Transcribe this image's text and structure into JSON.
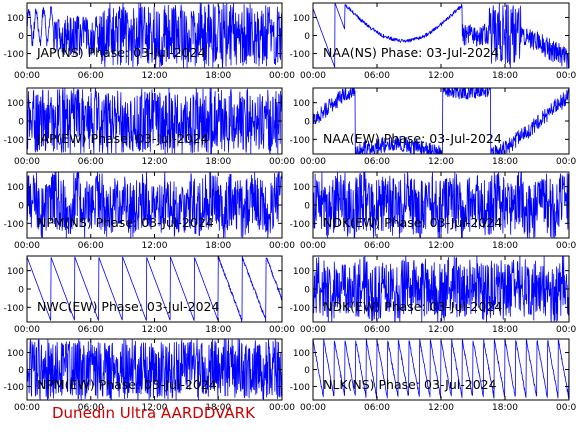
{
  "footer": "Dunedin Ultra AARDDVARK",
  "colors": {
    "trace": "#0000ff",
    "axes": "#000000",
    "footer": "#cc0000",
    "background": "#ffffff"
  },
  "chart_data": [
    {
      "type": "line",
      "label": "JAP(NS) Phase: 03-Jul-2024",
      "pattern": "dense_late",
      "xlim": [
        0,
        24
      ],
      "ylim": [
        -180,
        180
      ],
      "xticks": [
        "00:00",
        "06:00",
        "12:00",
        "18:00",
        "00:00"
      ],
      "yticks": [
        "100",
        "0",
        "-100"
      ]
    },
    {
      "type": "line",
      "label": "NAA(NS) Phase: 03-Jul-2024",
      "pattern": "arc",
      "xlim": [
        0,
        24
      ],
      "ylim": [
        -180,
        180
      ],
      "xticks": [
        "00:00",
        "06:00",
        "12:00",
        "18:00",
        "00:00"
      ],
      "yticks": [
        "100",
        "0",
        "-100"
      ]
    },
    {
      "type": "line",
      "label": "JAP(EW) Phase: 03-Jul-2024",
      "pattern": "dense",
      "xlim": [
        0,
        24
      ],
      "ylim": [
        -180,
        180
      ],
      "xticks": [
        "00:00",
        "06:00",
        "12:00",
        "18:00",
        "00:00"
      ],
      "yticks": [
        "100",
        "0",
        "-100"
      ]
    },
    {
      "type": "line",
      "label": "NAA(EW) Phase: 03-Jul-2024",
      "pattern": "noisy_wave",
      "xlim": [
        0,
        24
      ],
      "ylim": [
        -180,
        180
      ],
      "xticks": [
        "00:00",
        "06:00",
        "12:00",
        "18:00",
        "00:00"
      ],
      "yticks": [
        "100",
        "0",
        "-100"
      ]
    },
    {
      "type": "line",
      "label": "NPM(NS) Phase: 03-Jul-2024",
      "pattern": "noise",
      "xlim": [
        0,
        24
      ],
      "ylim": [
        -180,
        180
      ],
      "xticks": [
        "00:00",
        "06:00",
        "12:00",
        "18:00",
        "00:00"
      ],
      "yticks": [
        "100",
        "0",
        "-100"
      ]
    },
    {
      "type": "line",
      "label": "NDK(EW) Phase: 03-Jul-2024",
      "pattern": "noise",
      "xlim": [
        0,
        24
      ],
      "ylim": [
        -180,
        180
      ],
      "xticks": [
        "00:00",
        "06:00",
        "12:00",
        "18:00",
        "00:00"
      ],
      "yticks": [
        "100",
        "0",
        "-100"
      ]
    },
    {
      "type": "line",
      "label": "NWC(EW) Phase: 03-Jul-2024",
      "pattern": "sawtooth",
      "xlim": [
        0,
        24
      ],
      "ylim": [
        -180,
        180
      ],
      "xticks": [
        "00:00",
        "06:00",
        "12:00",
        "18:00",
        "00:00"
      ],
      "yticks": [
        "100",
        "0",
        "-100"
      ]
    },
    {
      "type": "line",
      "label": "NDK(EW) Phase: 03-Jul-2024",
      "pattern": "noise",
      "xlim": [
        0,
        24
      ],
      "ylim": [
        -180,
        180
      ],
      "xticks": [
        "00:00",
        "06:00",
        "12:00",
        "18:00",
        "00:00"
      ],
      "yticks": [
        "100",
        "0",
        "-100"
      ]
    },
    {
      "type": "line",
      "label": "NPM(EW) Phase: 03-Jul-2024",
      "pattern": "dense",
      "xlim": [
        0,
        24
      ],
      "ylim": [
        -180,
        180
      ],
      "xticks": [
        "00:00",
        "06:00",
        "12:00",
        "18:00",
        "00:00"
      ],
      "yticks": [
        "100",
        "0",
        "-100"
      ]
    },
    {
      "type": "line",
      "label": "NLK(NS) Phase: 03-Jul-2024",
      "pattern": "fast_sawtooth",
      "xlim": [
        0,
        24
      ],
      "ylim": [
        -180,
        180
      ],
      "xticks": [
        "00:00",
        "06:00",
        "12:00",
        "18:00",
        "00:00"
      ],
      "yticks": [
        "100",
        "0",
        "-100"
      ]
    }
  ]
}
